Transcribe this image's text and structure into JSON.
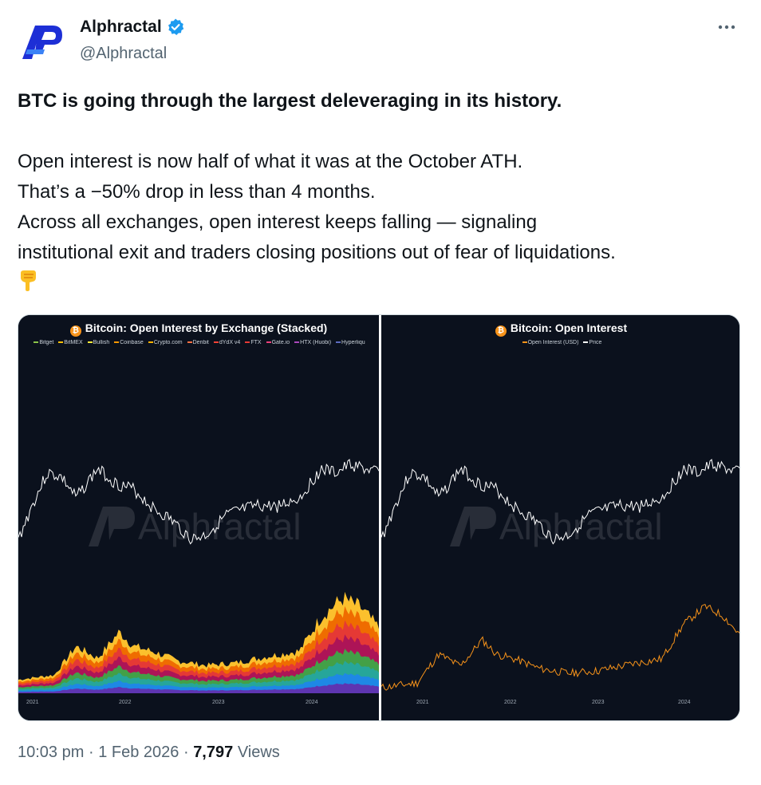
{
  "author": {
    "display_name": "Alphractal",
    "handle": "@Alphractal",
    "verified": true,
    "avatar_icon": "alphractal-logo-icon",
    "brand_color": "#1d2fd6"
  },
  "tweet": {
    "headline": "BTC is going through the largest deleveraging in its history.",
    "lines": [
      "Open interest is now half of what it was at the October ATH.",
      "That’s a −50% drop in less than 4 months.",
      "Across all exchanges, open interest keeps falling — signaling",
      "institutional exit and traders closing positions out of fear of liquidations."
    ],
    "emoji_icon": "pointing-down-icon"
  },
  "media": {
    "left_chart": {
      "title": "Bitcoin: Open Interest by Exchange (Stacked)",
      "watermark": "Alphractal",
      "legend": [
        {
          "name": "Bitget",
          "color": "#8bc34a"
        },
        {
          "name": "BitMEX",
          "color": "#ffc107"
        },
        {
          "name": "Bullish",
          "color": "#ffeb3b"
        },
        {
          "name": "Coinbase",
          "color": "#ff9800"
        },
        {
          "name": "Crypto.com",
          "color": "#ffb300"
        },
        {
          "name": "Deribit",
          "color": "#ff7043"
        },
        {
          "name": "dYdX v4",
          "color": "#f44336"
        },
        {
          "name": "FTX",
          "color": "#e53935"
        },
        {
          "name": "Gate.io",
          "color": "#ec407a"
        },
        {
          "name": "HTX (Huobi)",
          "color": "#ab47bc"
        },
        {
          "name": "Hyperliqu",
          "color": "#5c6bc0"
        }
      ],
      "x_ticks": [
        "2021",
        "2022",
        "2023",
        "2024"
      ]
    },
    "right_chart": {
      "title": "Bitcoin: Open Interest",
      "watermark": "Alphractal",
      "legend": [
        {
          "name": "Open Interest (USD)",
          "color": "#f7931a"
        },
        {
          "name": "Price",
          "color": "#ffffff"
        }
      ],
      "x_ticks": [
        "2021",
        "2022",
        "2023",
        "2024"
      ]
    }
  },
  "meta": {
    "time": "10:03 pm",
    "date": "1 Feb 2026",
    "views_count": "7,797",
    "views_label": "Views",
    "separator": "·"
  }
}
